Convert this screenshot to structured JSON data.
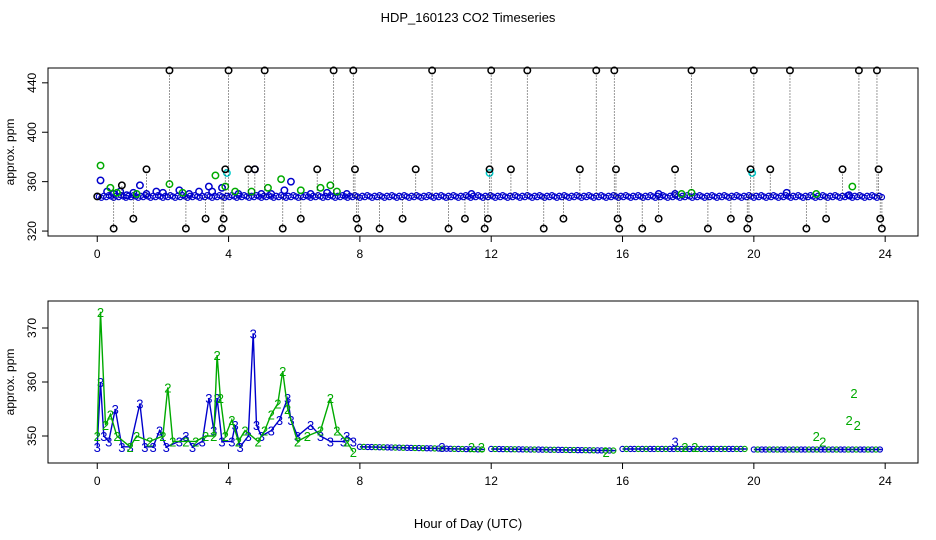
{
  "figure": {
    "title": "HDP_160123  CO2 Timeseries",
    "xlabel": "Hour of Day (UTC)"
  },
  "chart_data": [
    {
      "type": "scatter",
      "ylabel": "approx. ppm",
      "xlim": [
        -1.5,
        25
      ],
      "ylim": [
        316,
        452
      ],
      "xticks": [
        0,
        4,
        8,
        12,
        16,
        20,
        24
      ],
      "yticks": [
        320,
        360,
        400,
        440
      ],
      "baseline": 348,
      "series": [
        {
          "color": "#0000cc",
          "marker": "circle",
          "points": [
            [
              0.1,
              361
            ],
            [
              0.3,
              352
            ],
            [
              0.5,
              350
            ],
            [
              0.7,
              352
            ],
            [
              0.9,
              349
            ],
            [
              1.1,
              351
            ],
            [
              1.3,
              357
            ],
            [
              1.5,
              350
            ],
            [
              1.8,
              352
            ],
            [
              2.0,
              351
            ],
            [
              2.5,
              353
            ],
            [
              2.8,
              350
            ],
            [
              3.1,
              352
            ],
            [
              3.4,
              356
            ],
            [
              3.5,
              352
            ],
            [
              3.8,
              355
            ],
            [
              4.3,
              350
            ],
            [
              4.8,
              370
            ],
            [
              5.0,
              350
            ],
            [
              5.3,
              350
            ],
            [
              5.7,
              353
            ],
            [
              5.9,
              360
            ],
            [
              6.5,
              350
            ],
            [
              7.0,
              351
            ],
            [
              7.6,
              350
            ],
            [
              11.4,
              350
            ],
            [
              17.1,
              350
            ],
            [
              17.6,
              350
            ],
            [
              21.0,
              351
            ],
            [
              22.9,
              349
            ]
          ]
        },
        {
          "color": "#00aa00",
          "marker": "circle",
          "points": [
            [
              0.1,
              373
            ],
            [
              0.4,
              355
            ],
            [
              0.6,
              351
            ],
            [
              1.2,
              350
            ],
            [
              2.2,
              358
            ],
            [
              2.6,
              351
            ],
            [
              3.6,
              365
            ],
            [
              3.9,
              356
            ],
            [
              4.2,
              352
            ],
            [
              4.7,
              352
            ],
            [
              5.2,
              355
            ],
            [
              5.6,
              362
            ],
            [
              6.2,
              353
            ],
            [
              6.8,
              355
            ],
            [
              7.1,
              357
            ],
            [
              7.3,
              352
            ],
            [
              17.8,
              350
            ],
            [
              18.1,
              351
            ],
            [
              21.9,
              350
            ],
            [
              23.0,
              356
            ]
          ]
        },
        {
          "color": "#00cccc",
          "marker": "circle",
          "points": [
            [
              3.95,
              367
            ],
            [
              11.95,
              367
            ],
            [
              19.95,
              367
            ]
          ]
        },
        {
          "color": "#000000",
          "marker": "circle",
          "points": [
            [
              0.0,
              348
            ],
            [
              0.5,
              322
            ],
            [
              0.75,
              357
            ],
            [
              1.1,
              330
            ],
            [
              1.5,
              370
            ],
            [
              2.2,
              450
            ],
            [
              2.7,
              322
            ],
            [
              3.3,
              330
            ],
            [
              3.8,
              322
            ],
            [
              3.85,
              330
            ],
            [
              3.9,
              370
            ],
            [
              4.0,
              450
            ],
            [
              4.6,
              370
            ],
            [
              4.8,
              370
            ],
            [
              5.1,
              450
            ],
            [
              5.65,
              322
            ],
            [
              6.2,
              330
            ],
            [
              6.7,
              370
            ],
            [
              7.2,
              450
            ],
            [
              7.8,
              450
            ],
            [
              7.85,
              370
            ],
            [
              7.9,
              330
            ],
            [
              7.95,
              322
            ],
            [
              8.6,
              322
            ],
            [
              9.3,
              330
            ],
            [
              9.7,
              370
            ],
            [
              10.2,
              450
            ],
            [
              10.7,
              322
            ],
            [
              11.2,
              330
            ],
            [
              11.8,
              322
            ],
            [
              11.9,
              330
            ],
            [
              11.95,
              370
            ],
            [
              12.0,
              450
            ],
            [
              12.6,
              370
            ],
            [
              13.1,
              450
            ],
            [
              13.6,
              322
            ],
            [
              14.2,
              330
            ],
            [
              14.7,
              370
            ],
            [
              15.2,
              450
            ],
            [
              15.75,
              450
            ],
            [
              15.8,
              370
            ],
            [
              15.85,
              330
            ],
            [
              15.9,
              322
            ],
            [
              16.6,
              322
            ],
            [
              17.1,
              330
            ],
            [
              17.6,
              370
            ],
            [
              18.1,
              450
            ],
            [
              18.6,
              322
            ],
            [
              19.3,
              330
            ],
            [
              19.8,
              322
            ],
            [
              19.85,
              330
            ],
            [
              19.9,
              370
            ],
            [
              20.0,
              450
            ],
            [
              20.5,
              370
            ],
            [
              21.1,
              450
            ],
            [
              21.6,
              322
            ],
            [
              22.2,
              330
            ],
            [
              22.7,
              370
            ],
            [
              23.2,
              450
            ],
            [
              23.75,
              450
            ],
            [
              23.8,
              370
            ],
            [
              23.85,
              330
            ],
            [
              23.9,
              322
            ]
          ]
        }
      ]
    },
    {
      "type": "line",
      "ylabel": "approx. ppm",
      "xlim": [
        -1.5,
        25
      ],
      "ylim": [
        345,
        375
      ],
      "xticks": [
        0,
        4,
        8,
        12,
        16,
        20,
        24
      ],
      "yticks": [
        350,
        360,
        370
      ],
      "series": [
        {
          "color": "#0000cc",
          "label": "3",
          "points": [
            [
              0.0,
              348
            ],
            [
              0.1,
              360
            ],
            [
              0.2,
              350
            ],
            [
              0.35,
              349
            ],
            [
              0.55,
              355
            ],
            [
              0.75,
              348
            ],
            [
              1.0,
              348
            ],
            [
              1.3,
              356
            ],
            [
              1.45,
              348
            ],
            [
              1.7,
              348
            ],
            [
              1.9,
              351
            ],
            [
              2.1,
              348
            ],
            [
              2.5,
              349
            ],
            [
              2.7,
              350
            ],
            [
              2.9,
              348
            ],
            [
              3.2,
              349
            ],
            [
              3.4,
              357
            ],
            [
              3.55,
              351
            ],
            [
              3.65,
              357
            ],
            [
              3.8,
              349
            ],
            [
              4.1,
              349
            ],
            [
              4.2,
              352
            ],
            [
              4.35,
              348
            ],
            [
              4.6,
              350
            ],
            [
              4.75,
              369
            ],
            [
              4.85,
              352
            ],
            [
              5.0,
              350
            ],
            [
              5.3,
              351
            ],
            [
              5.55,
              353
            ],
            [
              5.8,
              357
            ],
            [
              5.9,
              353
            ],
            [
              6.1,
              350
            ],
            [
              6.5,
              352
            ],
            [
              6.8,
              350
            ],
            [
              7.1,
              349
            ],
            [
              7.5,
              349
            ],
            [
              7.6,
              350
            ],
            [
              7.8,
              349
            ]
          ]
        },
        {
          "color": "#00aa00",
          "label": "2",
          "points": [
            [
              0.0,
              350
            ],
            [
              0.1,
              373
            ],
            [
              0.25,
              352
            ],
            [
              0.4,
              354
            ],
            [
              0.6,
              350
            ],
            [
              1.0,
              348
            ],
            [
              1.2,
              350
            ],
            [
              1.6,
              349
            ],
            [
              2.0,
              350
            ],
            [
              2.15,
              359
            ],
            [
              2.3,
              349
            ],
            [
              2.7,
              349
            ],
            [
              3.0,
              349
            ],
            [
              3.3,
              350
            ],
            [
              3.55,
              350
            ],
            [
              3.65,
              365
            ],
            [
              3.75,
              357
            ],
            [
              3.9,
              350
            ],
            [
              4.1,
              353
            ],
            [
              4.3,
              349
            ],
            [
              4.5,
              351
            ],
            [
              4.9,
              349
            ],
            [
              5.1,
              351
            ],
            [
              5.3,
              354
            ],
            [
              5.5,
              356
            ],
            [
              5.65,
              362
            ],
            [
              5.8,
              355
            ],
            [
              6.1,
              349
            ],
            [
              6.4,
              350
            ],
            [
              6.8,
              351
            ],
            [
              7.1,
              357
            ],
            [
              7.3,
              351
            ],
            [
              7.6,
              349
            ],
            [
              7.8,
              347
            ]
          ]
        },
        {
          "color": "#0000cc",
          "label": "",
          "segments": [
            [
              [
                8.0,
                348
              ],
              [
                11.8,
                347.5
              ]
            ],
            [
              [
                12.0,
                347.6
              ],
              [
                15.8,
                347.3
              ]
            ],
            [
              [
                16.0,
                347.6
              ],
              [
                19.8,
                347.6
              ]
            ],
            [
              [
                20.0,
                347.5
              ],
              [
                23.9,
                347.5
              ]
            ]
          ]
        },
        {
          "color": "#0000cc",
          "label": "3",
          "points": [
            [
              10.5,
              348
            ],
            [
              17.6,
              349
            ]
          ]
        },
        {
          "color": "#00aa00",
          "label": "2",
          "points": [
            [
              11.4,
              348
            ],
            [
              11.7,
              348
            ],
            [
              15.5,
              347
            ],
            [
              17.9,
              348
            ],
            [
              18.2,
              348
            ],
            [
              21.9,
              350
            ],
            [
              22.1,
              349
            ],
            [
              22.9,
              353
            ],
            [
              23.05,
              358
            ],
            [
              23.15,
              352
            ]
          ]
        }
      ]
    }
  ]
}
